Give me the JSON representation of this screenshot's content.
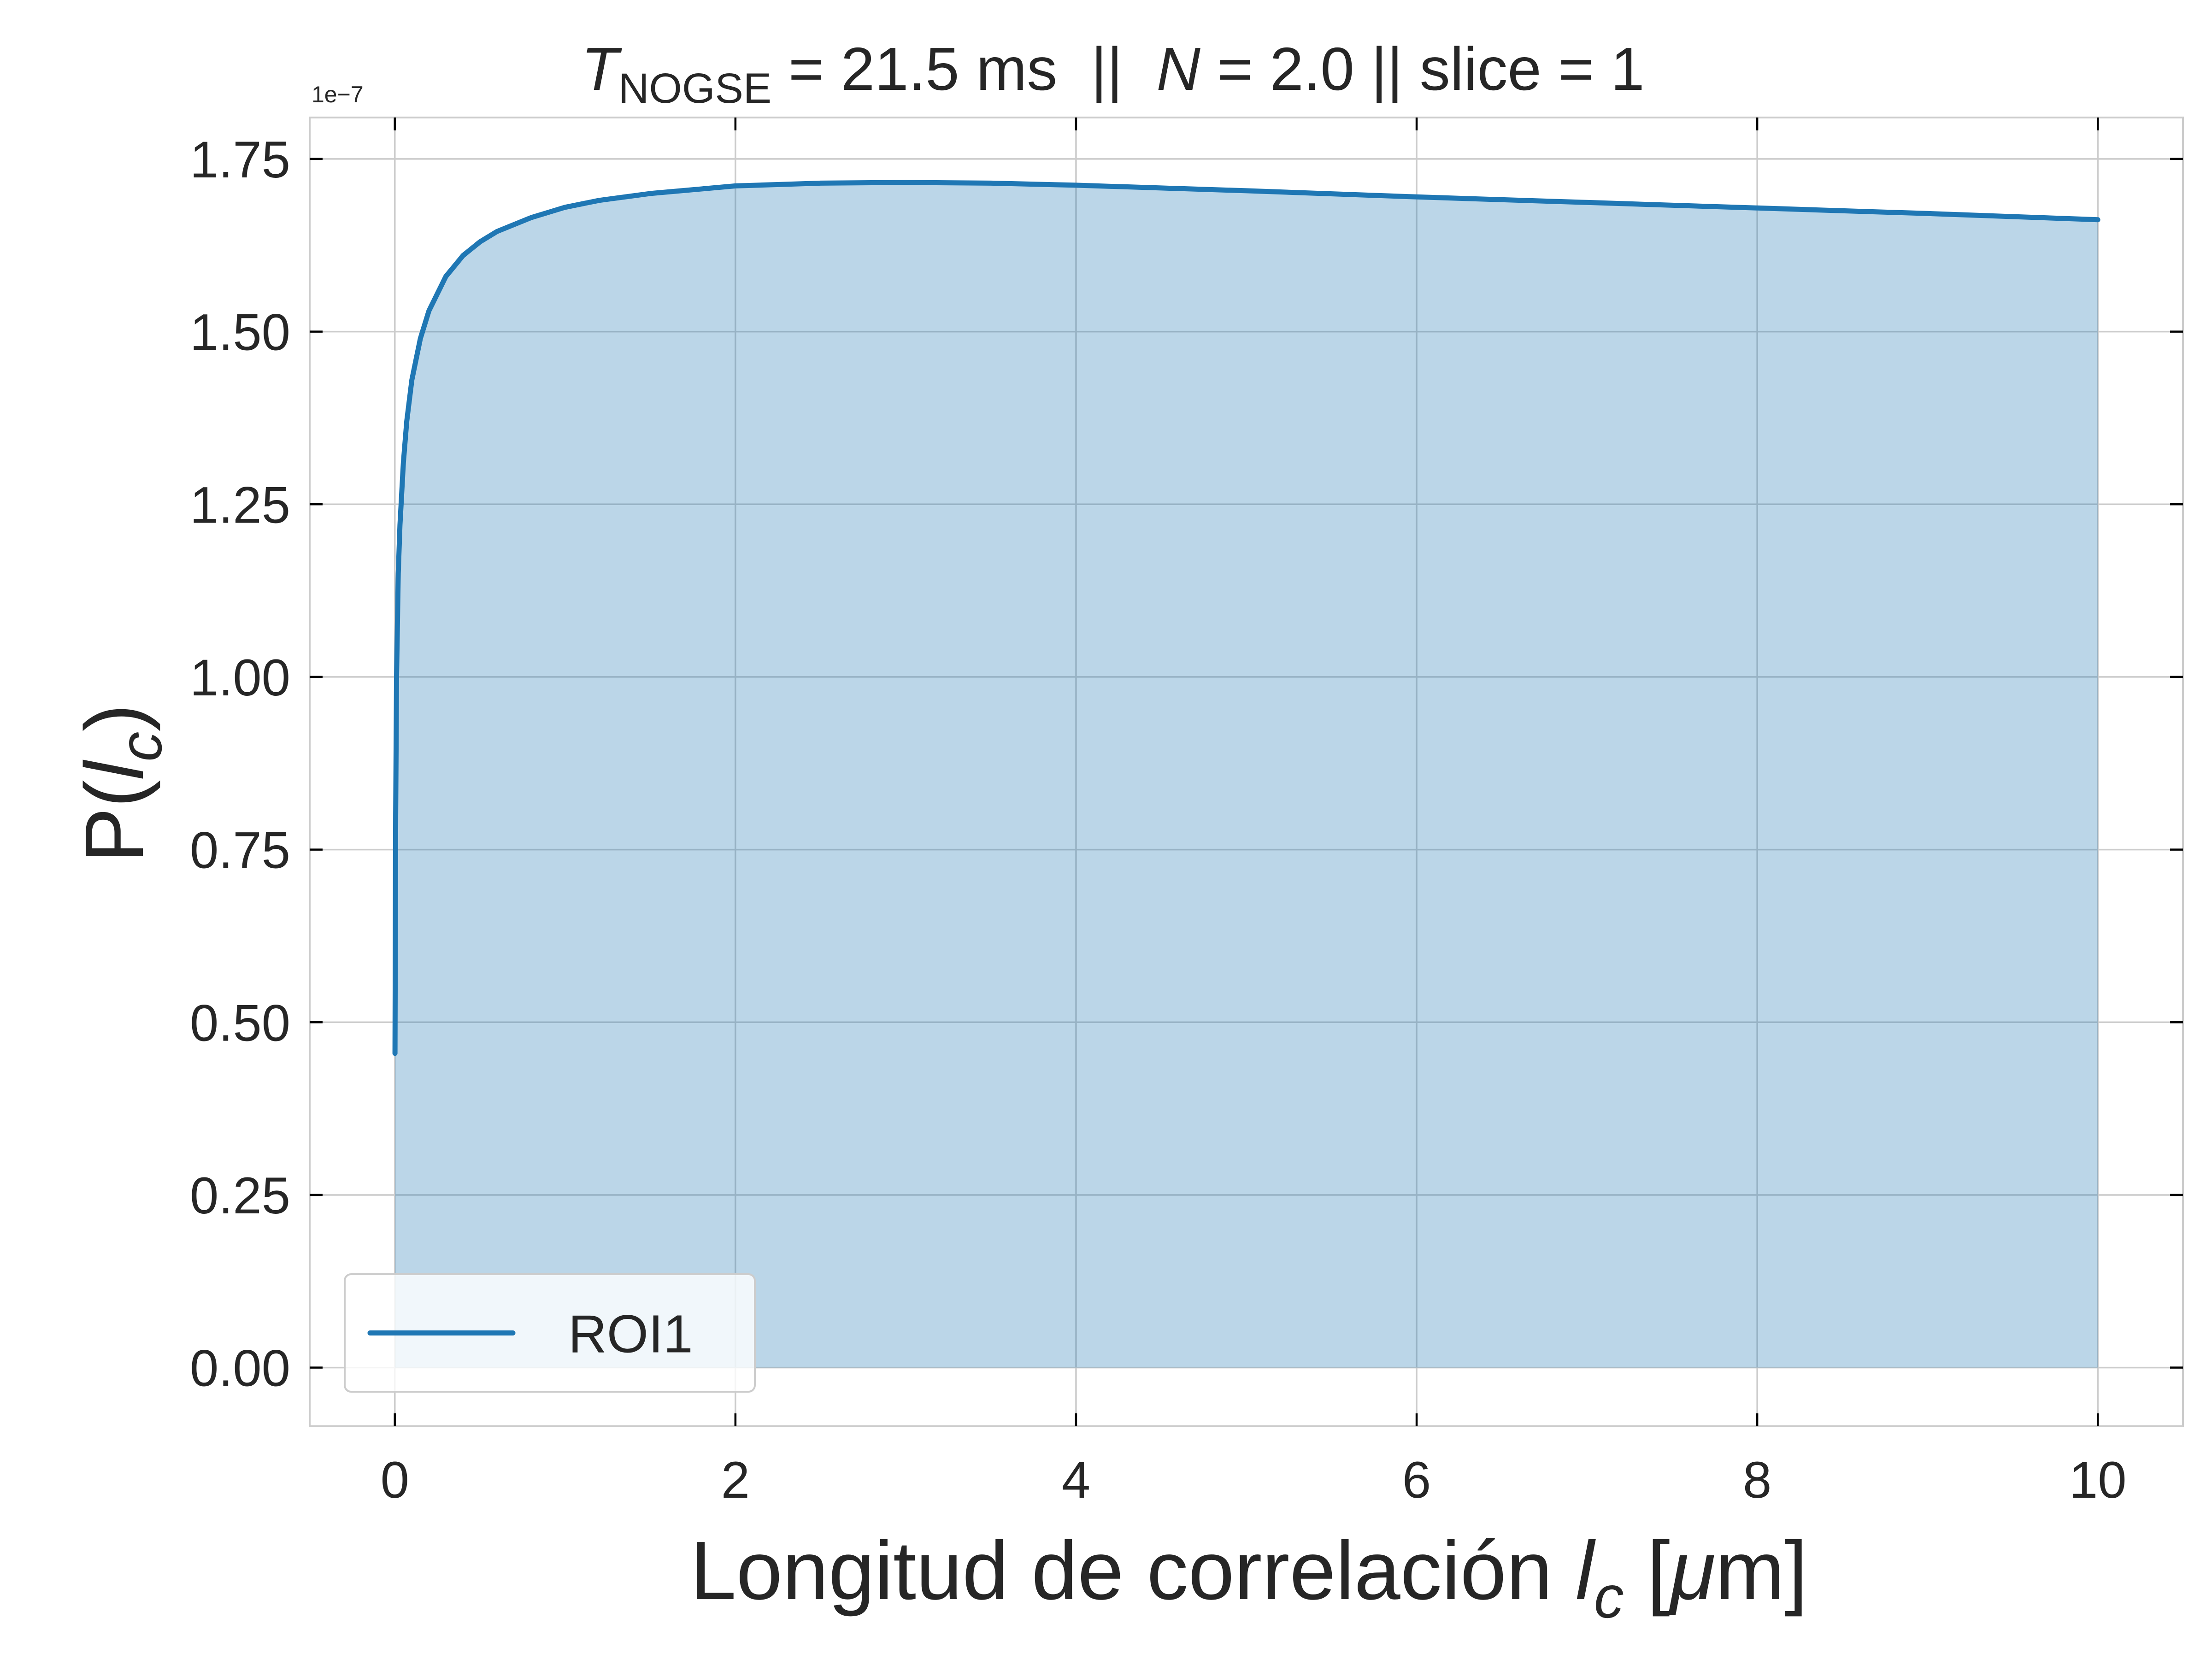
{
  "chart_data": {
    "type": "area",
    "title": {
      "t_symbol": "T",
      "t_subscript": "NOGSE",
      "t_rest": " = 21.5 ms  ||  ",
      "n_symbol": "N",
      "n_rest": " = 2.0 || slice = 1"
    },
    "xlabel": {
      "prefix": "Longitud de correlación ",
      "symbol": "l",
      "subscript": "c",
      "bracket_open": " [",
      "mu": "μ",
      "unit_rest": "m]"
    },
    "ylabel": {
      "prefix": "P(",
      "symbol": "l",
      "subscript": "c",
      "suffix": ")"
    },
    "y_offset_label": "1e−7",
    "xlim": [
      -0.5,
      10.5
    ],
    "ylim": [
      -0.085,
      1.81
    ],
    "x_ticks": [
      0,
      2,
      4,
      6,
      8,
      10
    ],
    "x_tick_labels": [
      "0",
      "2",
      "4",
      "6",
      "8",
      "10"
    ],
    "y_ticks": [
      0.0,
      0.25,
      0.5,
      0.75,
      1.0,
      1.25,
      1.5,
      1.75
    ],
    "y_tick_labels": [
      "0.00",
      "0.25",
      "0.50",
      "0.75",
      "1.00",
      "1.25",
      "1.50",
      "1.75"
    ],
    "y_scale_multiplier": 1e-07,
    "grid": true,
    "legend_position": "lower-left",
    "series": [
      {
        "name": "ROI1",
        "color": "#1f77b4",
        "fill_color": "#1f77b4",
        "fill_opacity": 0.3,
        "x": [
          0.001,
          0.005,
          0.01,
          0.02,
          0.03,
          0.05,
          0.07,
          0.1,
          0.15,
          0.2,
          0.3,
          0.4,
          0.5,
          0.6,
          0.8,
          1.0,
          1.2,
          1.5,
          2.0,
          2.5,
          3.0,
          3.5,
          4.0,
          4.5,
          5.0,
          6.0,
          7.0,
          8.0,
          9.0,
          10.0
        ],
        "y": [
          0.455,
          0.8,
          1.0,
          1.15,
          1.22,
          1.31,
          1.37,
          1.43,
          1.49,
          1.53,
          1.58,
          1.61,
          1.63,
          1.645,
          1.665,
          1.68,
          1.69,
          1.7,
          1.711,
          1.715,
          1.716,
          1.715,
          1.712,
          1.708,
          1.704,
          1.695,
          1.687,
          1.679,
          1.671,
          1.662
        ]
      }
    ]
  }
}
